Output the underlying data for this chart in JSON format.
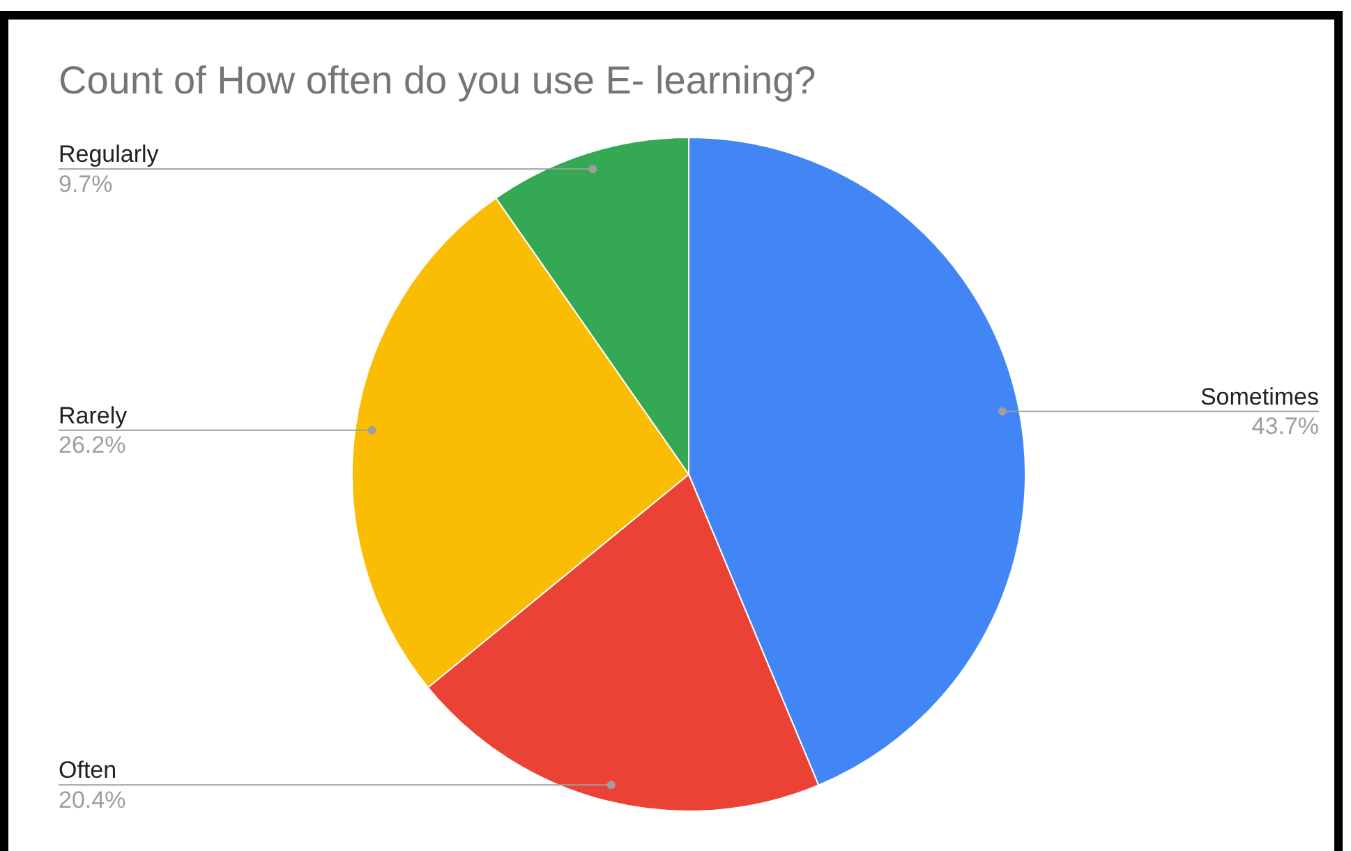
{
  "chart_data": {
    "type": "pie",
    "title": "Count of How often do you use E- learning?",
    "categories": [
      "Sometimes",
      "Often",
      "Rarely",
      "Regularly"
    ],
    "values": [
      43.7,
      20.4,
      26.2,
      9.7
    ],
    "value_labels": [
      "43.7%",
      "20.4%",
      "26.2%",
      "9.7%"
    ],
    "colors": [
      "#4285f4",
      "#ea4335",
      "#fbbc04",
      "#34a853"
    ],
    "legend": false
  }
}
